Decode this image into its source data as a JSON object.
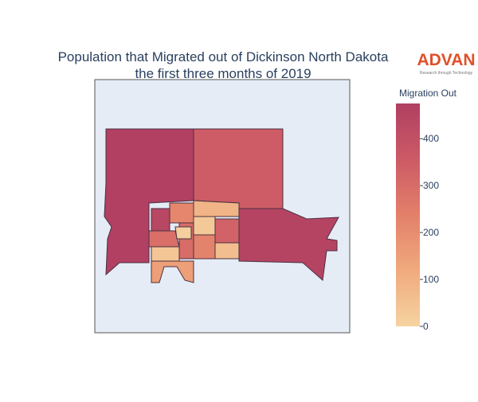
{
  "chart_data": {
    "type": "choropleth",
    "title": [
      "Population that Migrated out of Dickinson North Dakota",
      "the first three months of 2019"
    ],
    "colorbar_title": "Migration Out",
    "colorscale": [
      "#f6d3a1",
      "#f0aa7d",
      "#e3806a",
      "#cc5a66",
      "#b03f62"
    ],
    "zlim": [
      0,
      475
    ],
    "zticks": [
      0,
      100,
      200,
      300,
      400
    ],
    "values": [
      470,
      350,
      455,
      440,
      220,
      90,
      150,
      330,
      230,
      60,
      290,
      40,
      300,
      30,
      10
    ],
    "logo": {
      "name": "ADVAN",
      "tagline": "Research through Technology"
    }
  }
}
